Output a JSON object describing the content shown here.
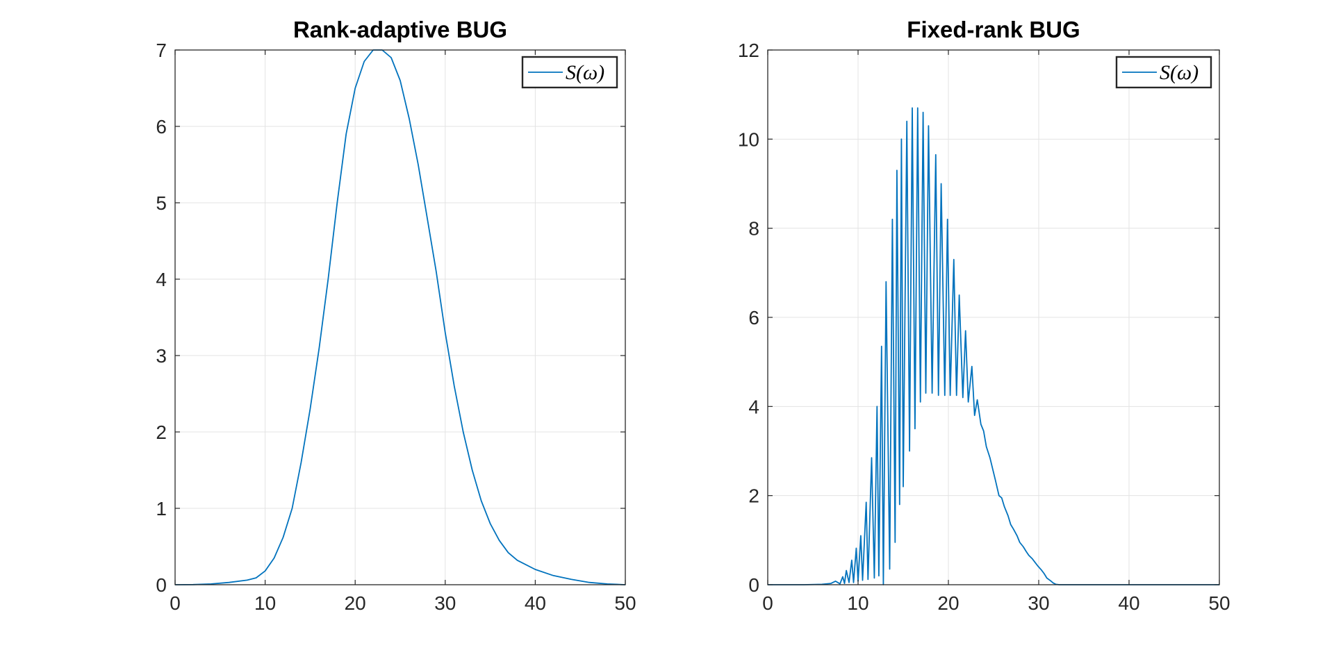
{
  "chart_data": [
    {
      "type": "line",
      "title": "Rank-adaptive BUG",
      "xlabel": "",
      "ylabel": "",
      "xlim": [
        0,
        50
      ],
      "ylim": [
        0,
        7
      ],
      "xticks": [
        0,
        10,
        20,
        30,
        40,
        50
      ],
      "yticks": [
        0,
        1,
        2,
        3,
        4,
        5,
        6,
        7
      ],
      "grid": true,
      "legend": {
        "position": "top-right",
        "entries": [
          "S(ω)"
        ]
      },
      "series": [
        {
          "name": "S(ω)",
          "color": "#0072BD",
          "x": [
            0,
            2,
            4,
            6,
            8,
            9,
            10,
            11,
            12,
            13,
            14,
            15,
            16,
            17,
            18,
            19,
            20,
            21,
            22,
            23,
            24,
            25,
            26,
            27,
            28,
            29,
            30,
            31,
            32,
            33,
            34,
            35,
            36,
            37,
            38,
            40,
            42,
            44,
            46,
            48,
            50
          ],
          "y": [
            0.0,
            0.002,
            0.01,
            0.03,
            0.06,
            0.09,
            0.18,
            0.35,
            0.62,
            1.0,
            1.6,
            2.3,
            3.1,
            4.0,
            5.0,
            5.9,
            6.5,
            6.85,
            7.0,
            7.0,
            6.9,
            6.6,
            6.1,
            5.5,
            4.8,
            4.1,
            3.3,
            2.6,
            2.0,
            1.5,
            1.1,
            0.8,
            0.58,
            0.42,
            0.32,
            0.2,
            0.12,
            0.07,
            0.03,
            0.01,
            0.0
          ]
        }
      ]
    },
    {
      "type": "line",
      "title": "Fixed-rank BUG",
      "xlabel": "",
      "ylabel": "",
      "xlim": [
        0,
        50
      ],
      "ylim": [
        0,
        12
      ],
      "xticks": [
        0,
        10,
        20,
        30,
        40,
        50
      ],
      "yticks": [
        0,
        2,
        4,
        6,
        8,
        10,
        12
      ],
      "grid": true,
      "legend": {
        "position": "top-right",
        "entries": [
          "S(ω)"
        ]
      },
      "series": [
        {
          "name": "S(ω)",
          "color": "#0072BD",
          "x": [
            0,
            2,
            4,
            6,
            7,
            7.5,
            8,
            8.3,
            8.5,
            8.7,
            9.0,
            9.3,
            9.5,
            9.8,
            10.0,
            10.3,
            10.5,
            10.9,
            11.1,
            11.5,
            11.8,
            12.1,
            12.3,
            12.6,
            12.8,
            13.1,
            13.5,
            13.8,
            14.1,
            14.3,
            14.6,
            14.8,
            15.0,
            15.4,
            15.7,
            16.0,
            16.3,
            16.6,
            16.9,
            17.2,
            17.5,
            17.8,
            18.2,
            18.6,
            18.9,
            19.2,
            19.6,
            19.9,
            20.2,
            20.6,
            20.9,
            21.2,
            21.6,
            21.9,
            22.2,
            22.6,
            22.9,
            23.2,
            23.6,
            23.9,
            24.2,
            24.6,
            24.9,
            25.2,
            25.6,
            25.9,
            26.2,
            26.6,
            26.9,
            27.2,
            27.6,
            27.9,
            28.3,
            28.6,
            28.9,
            29.3,
            29.6,
            29.9,
            30.3,
            30.6,
            30.9,
            31.3,
            31.6,
            31.9,
            32.3,
            32.6,
            33.0,
            33.5,
            34.0,
            34.5,
            35.0,
            35.5,
            36.0,
            37.0,
            38.0,
            40.0,
            42.0,
            44.0,
            46.0,
            48.0,
            50.0
          ],
          "y": [
            0.0,
            0.0,
            0.0,
            0.01,
            0.03,
            0.08,
            0.02,
            0.18,
            0.03,
            0.32,
            0.05,
            0.55,
            0.05,
            0.82,
            0.08,
            1.1,
            0.1,
            1.85,
            0.12,
            2.85,
            0.15,
            4.0,
            0.2,
            5.35,
            0.0,
            6.8,
            0.35,
            8.2,
            0.95,
            9.3,
            1.8,
            10.0,
            2.2,
            10.4,
            3.0,
            10.7,
            3.5,
            10.7,
            4.1,
            10.6,
            4.3,
            10.3,
            4.3,
            9.65,
            4.25,
            9.0,
            4.25,
            8.2,
            4.25,
            7.3,
            4.25,
            6.5,
            4.2,
            5.7,
            4.1,
            4.9,
            3.8,
            4.15,
            3.6,
            3.45,
            3.1,
            2.85,
            2.6,
            2.35,
            2.0,
            1.95,
            1.75,
            1.55,
            1.35,
            1.25,
            1.1,
            0.95,
            0.85,
            0.75,
            0.66,
            0.58,
            0.5,
            0.42,
            0.33,
            0.25,
            0.15,
            0.09,
            0.04,
            0.01,
            0.0,
            0.0,
            0.0,
            0.0,
            0.0,
            0.0,
            0.0,
            0.0,
            0.0,
            0.0,
            0.0,
            0.0,
            0.0,
            0.0,
            0.0,
            0.0,
            0.0
          ]
        }
      ]
    }
  ]
}
